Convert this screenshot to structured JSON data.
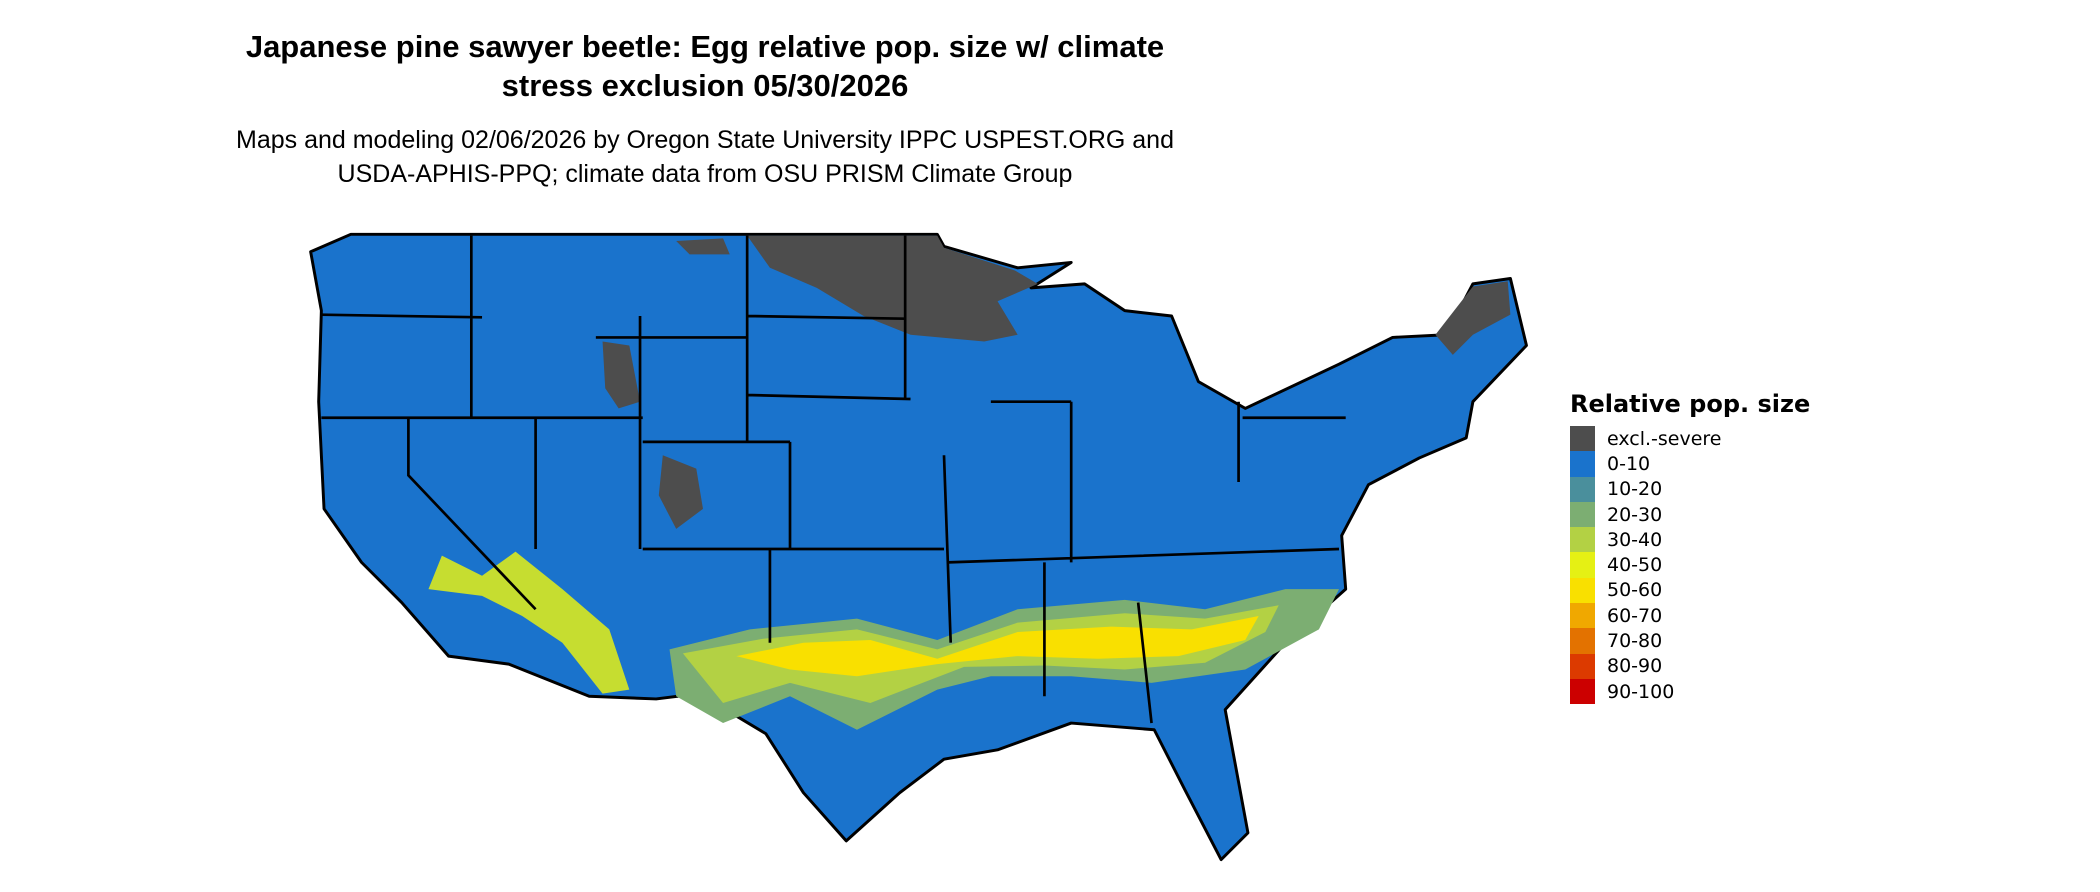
{
  "title_line1": "Japanese pine sawyer beetle: Egg relative pop. size w/ climate",
  "title_line2": "stress exclusion 05/30/2026",
  "subtitle_line1": "Maps and modeling 02/06/2026 by Oregon State University IPPC USPEST.ORG and",
  "subtitle_line2": "USDA-APHIS-PPQ; climate data from OSU PRISM Climate Group",
  "legend": {
    "title": "Relative pop. size",
    "items": [
      {
        "label": "excl.-severe",
        "color": "#4d4d4d"
      },
      {
        "label": "0-10",
        "color": "#1a73cc"
      },
      {
        "label": "10-20",
        "color": "#4a8f9c"
      },
      {
        "label": "20-30",
        "color": "#7cae72"
      },
      {
        "label": "30-40",
        "color": "#b3d144"
      },
      {
        "label": "40-50",
        "color": "#e5f014"
      },
      {
        "label": "50-60",
        "color": "#f9e000"
      },
      {
        "label": "60-70",
        "color": "#f0a800"
      },
      {
        "label": "70-80",
        "color": "#e37200"
      },
      {
        "label": "80-90",
        "color": "#dc3a00"
      },
      {
        "label": "90-100",
        "color": "#cc0000"
      }
    ]
  }
}
